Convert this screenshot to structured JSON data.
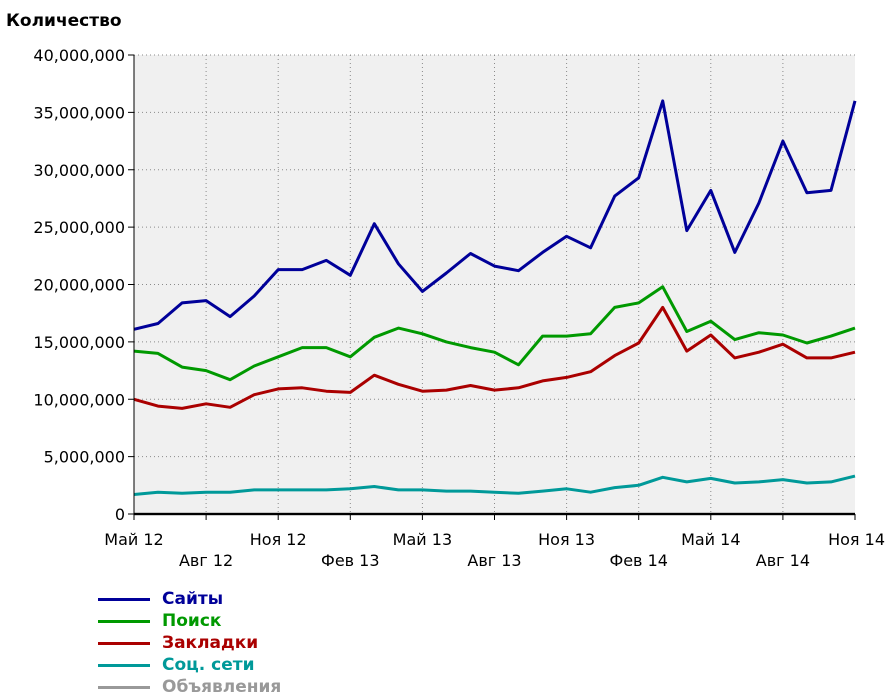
{
  "chart_data": {
    "type": "line",
    "ylabel": "Количество",
    "ylim": [
      0,
      40000000
    ],
    "y_ticks": [
      "0",
      "5,000,000",
      "10,000,000",
      "15,000,000",
      "20,000,000",
      "25,000,000",
      "30,000,000",
      "35,000,000",
      "40,000,000"
    ],
    "x": [
      "2012-05",
      "2012-06",
      "2012-07",
      "2012-08",
      "2012-09",
      "2012-10",
      "2012-11",
      "2012-12",
      "2013-01",
      "2013-02",
      "2013-03",
      "2013-04",
      "2013-05",
      "2013-06",
      "2013-07",
      "2013-08",
      "2013-09",
      "2013-10",
      "2013-11",
      "2013-12",
      "2014-01",
      "2014-02",
      "2014-03",
      "2014-04",
      "2014-05",
      "2014-06",
      "2014-07",
      "2014-08",
      "2014-09",
      "2014-10",
      "2014-11"
    ],
    "x_tick_labels": [
      {
        "label": "Май 12",
        "x": "2012-05",
        "row": "top"
      },
      {
        "label": "Авг 12",
        "x": "2012-08",
        "row": "bottom"
      },
      {
        "label": "Ноя 12",
        "x": "2012-11",
        "row": "top"
      },
      {
        "label": "Фев 13",
        "x": "2013-02",
        "row": "bottom"
      },
      {
        "label": "Май 13",
        "x": "2013-05",
        "row": "top"
      },
      {
        "label": "Авг 13",
        "x": "2013-08",
        "row": "bottom"
      },
      {
        "label": "Ноя 13",
        "x": "2013-11",
        "row": "top"
      },
      {
        "label": "Фев 14",
        "x": "2014-02",
        "row": "bottom"
      },
      {
        "label": "Май 14",
        "x": "2014-05",
        "row": "top"
      },
      {
        "label": "Авг 14",
        "x": "2014-08",
        "row": "bottom"
      },
      {
        "label": "Ноя 14",
        "x": "2014-11",
        "row": "top"
      }
    ],
    "grid": true,
    "legend_position": "bottom-left",
    "series": [
      {
        "name": "Сайты",
        "color": "#000099",
        "values": [
          16100000,
          16600000,
          18400000,
          18600000,
          17200000,
          19000000,
          21300000,
          21300000,
          22100000,
          20800000,
          25300000,
          21800000,
          19400000,
          21000000,
          22700000,
          21600000,
          21200000,
          22800000,
          24200000,
          23200000,
          27700000,
          29300000,
          36000000,
          24700000,
          28200000,
          22800000,
          27100000,
          32500000,
          28000000,
          28200000,
          36000000
        ]
      },
      {
        "name": "Поиск",
        "color": "#009900",
        "values": [
          14200000,
          14000000,
          12800000,
          12500000,
          11700000,
          12900000,
          13700000,
          14500000,
          14500000,
          13700000,
          15400000,
          16200000,
          15700000,
          15000000,
          14500000,
          14100000,
          13000000,
          15500000,
          15500000,
          15700000,
          18000000,
          18400000,
          19800000,
          15900000,
          16800000,
          15200000,
          15800000,
          15600000,
          14900000,
          15500000,
          16200000
        ]
      },
      {
        "name": "Закладки",
        "color": "#aa0000",
        "values": [
          10000000,
          9400000,
          9200000,
          9600000,
          9300000,
          10400000,
          10900000,
          11000000,
          10700000,
          10600000,
          12100000,
          11300000,
          10700000,
          10800000,
          11200000,
          10800000,
          11000000,
          11600000,
          11900000,
          12400000,
          13800000,
          14900000,
          18000000,
          14200000,
          15600000,
          13600000,
          14100000,
          14800000,
          13600000,
          13600000,
          14100000
        ]
      },
      {
        "name": "Соц. сети",
        "color": "#009999",
        "values": [
          1700000,
          1900000,
          1800000,
          1900000,
          1900000,
          2100000,
          2100000,
          2100000,
          2100000,
          2200000,
          2400000,
          2100000,
          2100000,
          2000000,
          2000000,
          1900000,
          1800000,
          2000000,
          2200000,
          1900000,
          2300000,
          2500000,
          3200000,
          2800000,
          3100000,
          2700000,
          2800000,
          3000000,
          2700000,
          2800000,
          3300000
        ]
      },
      {
        "name": "Объявления",
        "color": "#999999",
        "values": [
          0,
          0,
          0,
          0,
          0,
          0,
          0,
          0,
          0,
          0,
          0,
          0,
          0,
          0,
          0,
          0,
          0,
          0,
          0,
          0,
          0,
          0,
          0,
          0,
          0,
          0,
          0,
          0,
          0,
          0,
          0
        ]
      }
    ]
  }
}
